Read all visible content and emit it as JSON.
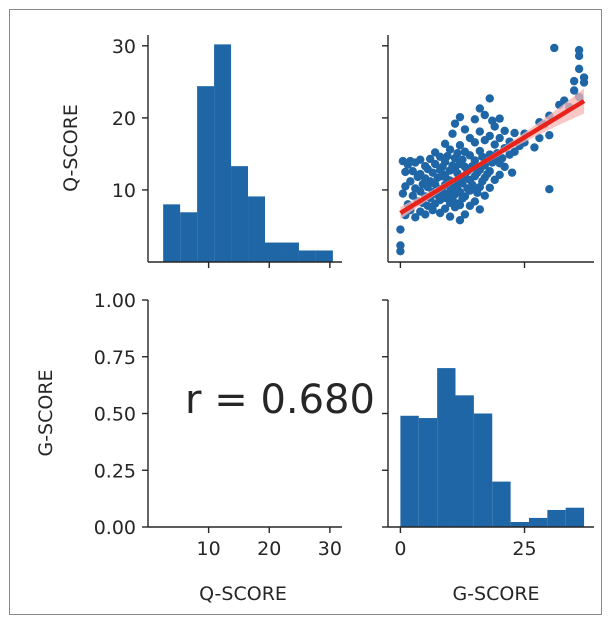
{
  "chart_data": {
    "type": "pairplot",
    "variables": [
      "Q-SCORE",
      "G-SCORE"
    ],
    "annotation": "r = 0.680",
    "colors": {
      "hist": "#1f66a7",
      "points": "#1f66a7",
      "regression": "#e8231c",
      "ci_band": "#f4b6b3"
    },
    "panels": [
      {
        "id": "hist-q",
        "type": "bar",
        "bin_edges": [
          2.5,
          5.3,
          8.1,
          10.9,
          13.7,
          16.5,
          19.3,
          22.1,
          24.9,
          27.7,
          30.5
        ],
        "values": [
          8,
          6.9,
          24.4,
          30.2,
          13.3,
          9.1,
          2.7,
          2.7,
          1.6,
          1.6
        ],
        "xlim": [
          0,
          32
        ],
        "ylim": [
          0,
          31.5
        ],
        "xticks": [
          10,
          20,
          30
        ],
        "yticks": [
          10,
          20,
          30
        ],
        "ylabel": "Q-SCORE"
      },
      {
        "id": "scatter",
        "type": "scatter",
        "xlim": [
          -2.5,
          39
        ],
        "ylim": [
          0,
          31.5
        ],
        "xticks": [
          0,
          25
        ],
        "regression": {
          "slope": 0.42,
          "intercept": 6.8,
          "x_range": [
            0,
            37
          ]
        },
        "points": [
          [
            0,
            1.5
          ],
          [
            0,
            2.3
          ],
          [
            0,
            4.5
          ],
          [
            0.5,
            9.5
          ],
          [
            0.5,
            14
          ],
          [
            1,
            6.5
          ],
          [
            1,
            10.5
          ],
          [
            1,
            12.5
          ],
          [
            1.5,
            8
          ],
          [
            1.5,
            13.5
          ],
          [
            2,
            7.2
          ],
          [
            2,
            11.2
          ],
          [
            2,
            14
          ],
          [
            2.5,
            9.2
          ],
          [
            2.5,
            12.6
          ],
          [
            3,
            6.2
          ],
          [
            3,
            10.2
          ],
          [
            3,
            13.8
          ],
          [
            3.5,
            8.4
          ],
          [
            3.5,
            11.8
          ],
          [
            4,
            7
          ],
          [
            4,
            9.8
          ],
          [
            4,
            12.2
          ],
          [
            4,
            14.2
          ],
          [
            4.5,
            8.2
          ],
          [
            4.5,
            10.8
          ],
          [
            5,
            6.6
          ],
          [
            5,
            9.1
          ],
          [
            5,
            11.6
          ],
          [
            5,
            13.3
          ],
          [
            5.5,
            7.8
          ],
          [
            5.5,
            10.4
          ],
          [
            5.5,
            12.9
          ],
          [
            6,
            8.9
          ],
          [
            6,
            11.2
          ],
          [
            6,
            14.3
          ],
          [
            6.5,
            7.2
          ],
          [
            6.5,
            9.7
          ],
          [
            6.5,
            12.4
          ],
          [
            7,
            8.1
          ],
          [
            7,
            10.8
          ],
          [
            7,
            13.6
          ],
          [
            7,
            15.2
          ],
          [
            7.5,
            9.3
          ],
          [
            7.5,
            11.7
          ],
          [
            8,
            6.8
          ],
          [
            8,
            8.6
          ],
          [
            8,
            10.1
          ],
          [
            8,
            12.8
          ],
          [
            8,
            14.6
          ],
          [
            8.5,
            9.7
          ],
          [
            8.5,
            11.9
          ],
          [
            8.5,
            13.2
          ],
          [
            9,
            7.4
          ],
          [
            9,
            8.9
          ],
          [
            9,
            10.7
          ],
          [
            9,
            12.1
          ],
          [
            9,
            13.9
          ],
          [
            9,
            16.4
          ],
          [
            9.5,
            9.2
          ],
          [
            9.5,
            11.4
          ],
          [
            9.5,
            14.7
          ],
          [
            10,
            6.3
          ],
          [
            10,
            8.2
          ],
          [
            10,
            9.8
          ],
          [
            10,
            11.3
          ],
          [
            10,
            12.7
          ],
          [
            10,
            15.6
          ],
          [
            10.5,
            8.7
          ],
          [
            10.5,
            10.2
          ],
          [
            10.5,
            13.4
          ],
          [
            10.5,
            17.8
          ],
          [
            11,
            7.6
          ],
          [
            11,
            9.4
          ],
          [
            11,
            11.1
          ],
          [
            11,
            12.9
          ],
          [
            11,
            14.4
          ],
          [
            11,
            19.2
          ],
          [
            11.5,
            8.1
          ],
          [
            11.5,
            10.6
          ],
          [
            11.5,
            12.3
          ],
          [
            11.5,
            15.1
          ],
          [
            12,
            5.8
          ],
          [
            12,
            7.9
          ],
          [
            12,
            9.7
          ],
          [
            12,
            11.5
          ],
          [
            12,
            13.6
          ],
          [
            12,
            16.2
          ],
          [
            12,
            20.1
          ],
          [
            12.5,
            8.8
          ],
          [
            12.5,
            10.9
          ],
          [
            12.5,
            14.2
          ],
          [
            13,
            6.6
          ],
          [
            13,
            9.1
          ],
          [
            13,
            11.8
          ],
          [
            13,
            13.2
          ],
          [
            13,
            15.3
          ],
          [
            13,
            18.4
          ],
          [
            13.5,
            10.2
          ],
          [
            13.5,
            12.6
          ],
          [
            14,
            7.8
          ],
          [
            14,
            9.9
          ],
          [
            14,
            11.4
          ],
          [
            14,
            12.9
          ],
          [
            14,
            14.8
          ],
          [
            14,
            17.2
          ],
          [
            14.5,
            10.7
          ],
          [
            14.5,
            13.3
          ],
          [
            15,
            8.4
          ],
          [
            15,
            10.1
          ],
          [
            15,
            11.9
          ],
          [
            15,
            14.1
          ],
          [
            15,
            16.6
          ],
          [
            15,
            19.8
          ],
          [
            15.5,
            9.6
          ],
          [
            15.5,
            12.4
          ],
          [
            16,
            7.3
          ],
          [
            16,
            10.4
          ],
          [
            16,
            12.8
          ],
          [
            16,
            15.4
          ],
          [
            16,
            18.1
          ],
          [
            16,
            21.3
          ],
          [
            16.5,
            11.2
          ],
          [
            16.5,
            14.6
          ],
          [
            17,
            9.2
          ],
          [
            17,
            11.7
          ],
          [
            17,
            13.4
          ],
          [
            17,
            16.9
          ],
          [
            17,
            20.4
          ],
          [
            17.5,
            12.2
          ],
          [
            18,
            10.3
          ],
          [
            18,
            12.6
          ],
          [
            18,
            14.9
          ],
          [
            18,
            17.5
          ],
          [
            18,
            22.7
          ],
          [
            18.5,
            13.8
          ],
          [
            18.5,
            19.6
          ],
          [
            19,
            11.4
          ],
          [
            19,
            14.2
          ],
          [
            19,
            16.3
          ],
          [
            19,
            18.8
          ],
          [
            19.5,
            15.1
          ],
          [
            20,
            12.1
          ],
          [
            20,
            13.7
          ],
          [
            20,
            17.2
          ],
          [
            20,
            19.9
          ],
          [
            20.5,
            14.4
          ],
          [
            21,
            13.2
          ],
          [
            21,
            15.8
          ],
          [
            21,
            18.2
          ],
          [
            22,
            14.9
          ],
          [
            22,
            16.7
          ],
          [
            22.5,
            12.4
          ],
          [
            23,
            15.3
          ],
          [
            23,
            17.9
          ],
          [
            24,
            16.1
          ],
          [
            25,
            16.6
          ],
          [
            25,
            17.8
          ],
          [
            27,
            15.9
          ],
          [
            28,
            17.2
          ],
          [
            28,
            19.4
          ],
          [
            29,
            19.1
          ],
          [
            30,
            17.6
          ],
          [
            30,
            10.1
          ],
          [
            30,
            20.3
          ],
          [
            31,
            29.7
          ],
          [
            32,
            21.8
          ],
          [
            33,
            22.4
          ],
          [
            34,
            21.5
          ],
          [
            35,
            23.8
          ],
          [
            35,
            25.1
          ],
          [
            36,
            22.9
          ],
          [
            36,
            26.8
          ],
          [
            37,
            24.9
          ],
          [
            37,
            25.6
          ],
          [
            36,
            28.6
          ],
          [
            36,
            29.4
          ]
        ]
      },
      {
        "id": "correlation",
        "type": "text",
        "xlim": [
          0,
          32
        ],
        "ylim": [
          0,
          1
        ],
        "xticks": [
          10,
          20,
          30
        ],
        "yticks": [
          "0.00",
          "0.25",
          "0.50",
          "0.75",
          "1.00"
        ],
        "xlabel": "Q-SCORE",
        "ylabel": "G-SCORE"
      },
      {
        "id": "hist-g",
        "type": "bar",
        "bin_edges": [
          0,
          3.7,
          7.4,
          11.1,
          14.8,
          18.5,
          22.2,
          25.9,
          29.6,
          33.3,
          37
        ],
        "values": [
          49,
          48,
          70,
          58,
          50,
          20,
          2.2,
          4,
          7.5,
          8.5
        ],
        "xlim": [
          -2.5,
          39
        ],
        "ylim": [
          0,
          100
        ],
        "xticks": [
          0,
          25
        ],
        "xlabel": "G-SCORE"
      }
    ]
  }
}
